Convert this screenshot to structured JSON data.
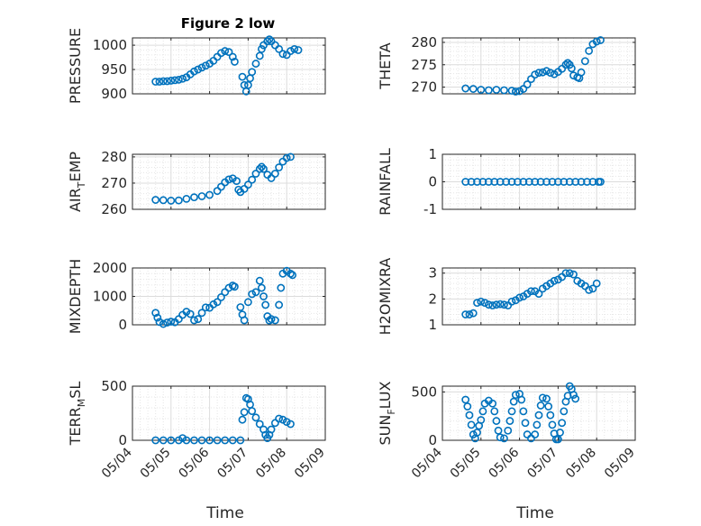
{
  "figure": {
    "title": "Figure 2 low",
    "marker_color": "#0072BD"
  },
  "x_ticks": [
    {
      "value": 0,
      "label": "05/04"
    },
    {
      "value": 1,
      "label": "05/05"
    },
    {
      "value": 2,
      "label": "05/06"
    },
    {
      "value": 3,
      "label": "05/07"
    },
    {
      "value": 4,
      "label": "05/08"
    },
    {
      "value": 5,
      "label": "05/09"
    }
  ],
  "chart_data": [
    {
      "type": "scatter",
      "ylabel": "PRESSURE",
      "ylabel_sub": "",
      "ylabel_rest": "",
      "ylim": [
        900,
        1015
      ],
      "yticks": [
        900,
        950,
        1000
      ],
      "xlabel": "",
      "x_axis": "dates 05/04 to 05/09",
      "grid": true,
      "points": [
        [
          0.6,
          925
        ],
        [
          0.7,
          925
        ],
        [
          0.8,
          926
        ],
        [
          0.9,
          926
        ],
        [
          1.0,
          927
        ],
        [
          1.1,
          928
        ],
        [
          1.2,
          929
        ],
        [
          1.3,
          931
        ],
        [
          1.4,
          934
        ],
        [
          1.5,
          940
        ],
        [
          1.6,
          946
        ],
        [
          1.7,
          950
        ],
        [
          1.8,
          954
        ],
        [
          1.9,
          958
        ],
        [
          2.0,
          962
        ],
        [
          2.1,
          968
        ],
        [
          2.2,
          976
        ],
        [
          2.3,
          984
        ],
        [
          2.4,
          988
        ],
        [
          2.5,
          986
        ],
        [
          2.6,
          976
        ],
        [
          2.65,
          966
        ],
        [
          2.85,
          935
        ],
        [
          2.9,
          918
        ],
        [
          2.95,
          905
        ],
        [
          3.0,
          918
        ],
        [
          3.05,
          932
        ],
        [
          3.1,
          945
        ],
        [
          3.2,
          962
        ],
        [
          3.3,
          978
        ],
        [
          3.35,
          992
        ],
        [
          3.4,
          1000
        ],
        [
          3.5,
          1008
        ],
        [
          3.55,
          1012
        ],
        [
          3.6,
          1008
        ],
        [
          3.7,
          1000
        ],
        [
          3.8,
          992
        ],
        [
          3.9,
          982
        ],
        [
          4.0,
          980
        ],
        [
          4.1,
          988
        ],
        [
          4.2,
          992
        ],
        [
          4.3,
          990
        ]
      ]
    },
    {
      "type": "scatter",
      "ylabel": "THETA",
      "ylabel_sub": "",
      "ylabel_rest": "",
      "ylim": [
        268.5,
        281
      ],
      "yticks": [
        270,
        275,
        280
      ],
      "xlabel": "",
      "x_axis": "dates 05/04 to 05/09",
      "grid": true,
      "points": [
        [
          0.6,
          269.7
        ],
        [
          0.8,
          269.6
        ],
        [
          1.0,
          269.4
        ],
        [
          1.2,
          269.3
        ],
        [
          1.4,
          269.4
        ],
        [
          1.6,
          269.3
        ],
        [
          1.8,
          269.2
        ],
        [
          1.9,
          269.0
        ],
        [
          2.0,
          269.1
        ],
        [
          2.1,
          269.6
        ],
        [
          2.2,
          270.6
        ],
        [
          2.3,
          271.8
        ],
        [
          2.4,
          272.8
        ],
        [
          2.5,
          273.2
        ],
        [
          2.6,
          273.3
        ],
        [
          2.7,
          273.6
        ],
        [
          2.8,
          273.2
        ],
        [
          2.9,
          272.9
        ],
        [
          3.0,
          273.4
        ],
        [
          3.1,
          274.1
        ],
        [
          3.2,
          275.0
        ],
        [
          3.25,
          275.4
        ],
        [
          3.3,
          275.0
        ],
        [
          3.35,
          274.2
        ],
        [
          3.4,
          272.6
        ],
        [
          3.5,
          272.2
        ],
        [
          3.55,
          272.0
        ],
        [
          3.6,
          273.3
        ],
        [
          3.7,
          275.8
        ],
        [
          3.8,
          278.1
        ],
        [
          3.9,
          279.6
        ],
        [
          4.0,
          280.2
        ],
        [
          4.1,
          280.5
        ]
      ]
    },
    {
      "type": "scatter",
      "ylabel": "AIR",
      "ylabel_sub": "T",
      "ylabel_rest": "EMP",
      "ylim": [
        260,
        281
      ],
      "yticks": [
        260,
        270,
        280
      ],
      "xlabel": "",
      "x_axis": "dates 05/04 to 05/09",
      "grid": true,
      "points": [
        [
          0.6,
          263.6
        ],
        [
          0.8,
          263.5
        ],
        [
          1.0,
          263.3
        ],
        [
          1.2,
          263.4
        ],
        [
          1.4,
          264.0
        ],
        [
          1.6,
          264.6
        ],
        [
          1.8,
          265.0
        ],
        [
          2.0,
          265.5
        ],
        [
          2.2,
          267.0
        ],
        [
          2.3,
          268.6
        ],
        [
          2.4,
          270.3
        ],
        [
          2.5,
          271.4
        ],
        [
          2.6,
          271.8
        ],
        [
          2.7,
          270.8
        ],
        [
          2.75,
          267.5
        ],
        [
          2.8,
          266.6
        ],
        [
          2.9,
          267.8
        ],
        [
          3.0,
          269.4
        ],
        [
          3.1,
          271.3
        ],
        [
          3.2,
          273.6
        ],
        [
          3.3,
          275.4
        ],
        [
          3.35,
          276.2
        ],
        [
          3.4,
          275.4
        ],
        [
          3.5,
          273.2
        ],
        [
          3.6,
          271.9
        ],
        [
          3.7,
          273.6
        ],
        [
          3.8,
          276.0
        ],
        [
          3.9,
          278.2
        ],
        [
          4.0,
          279.6
        ],
        [
          4.1,
          280.0
        ]
      ]
    },
    {
      "type": "scatter",
      "ylabel": "RAINFALL",
      "ylabel_sub": "",
      "ylabel_rest": "",
      "ylim": [
        -1,
        1
      ],
      "yticks": [
        -1,
        0,
        1
      ],
      "xlabel": "",
      "x_axis": "dates 05/04 to 05/09",
      "grid": true,
      "points": [
        [
          0.6,
          0
        ],
        [
          0.75,
          0
        ],
        [
          0.9,
          0
        ],
        [
          1.05,
          0
        ],
        [
          1.2,
          0
        ],
        [
          1.35,
          0
        ],
        [
          1.5,
          0
        ],
        [
          1.65,
          0
        ],
        [
          1.8,
          0
        ],
        [
          1.95,
          0
        ],
        [
          2.1,
          0
        ],
        [
          2.25,
          0
        ],
        [
          2.4,
          0
        ],
        [
          2.55,
          0
        ],
        [
          2.7,
          0
        ],
        [
          2.85,
          0
        ],
        [
          3.0,
          0
        ],
        [
          3.15,
          0
        ],
        [
          3.3,
          0
        ],
        [
          3.45,
          0
        ],
        [
          3.6,
          0
        ],
        [
          3.75,
          0
        ],
        [
          3.9,
          0
        ],
        [
          4.05,
          0
        ],
        [
          4.1,
          0
        ]
      ]
    },
    {
      "type": "scatter",
      "ylabel": "MIXDEPTH",
      "ylabel_sub": "",
      "ylabel_rest": "",
      "ylim": [
        0,
        2000
      ],
      "yticks": [
        0,
        1000,
        2000
      ],
      "xlabel": "",
      "x_axis": "dates 05/04 to 05/09",
      "grid": true,
      "points": [
        [
          0.6,
          420
        ],
        [
          0.65,
          250
        ],
        [
          0.7,
          100
        ],
        [
          0.8,
          30
        ],
        [
          0.9,
          80
        ],
        [
          1.0,
          110
        ],
        [
          1.1,
          90
        ],
        [
          1.2,
          200
        ],
        [
          1.3,
          350
        ],
        [
          1.4,
          460
        ],
        [
          1.5,
          380
        ],
        [
          1.6,
          160
        ],
        [
          1.7,
          200
        ],
        [
          1.8,
          420
        ],
        [
          1.9,
          610
        ],
        [
          2.0,
          600
        ],
        [
          2.1,
          720
        ],
        [
          2.2,
          800
        ],
        [
          2.3,
          970
        ],
        [
          2.4,
          1150
        ],
        [
          2.5,
          1300
        ],
        [
          2.6,
          1380
        ],
        [
          2.65,
          1340
        ],
        [
          2.8,
          620
        ],
        [
          2.85,
          360
        ],
        [
          2.9,
          160
        ],
        [
          3.0,
          800
        ],
        [
          3.1,
          1080
        ],
        [
          3.2,
          1150
        ],
        [
          3.3,
          1550
        ],
        [
          3.35,
          1300
        ],
        [
          3.4,
          1000
        ],
        [
          3.45,
          700
        ],
        [
          3.5,
          300
        ],
        [
          3.55,
          150
        ],
        [
          3.6,
          200
        ],
        [
          3.7,
          160
        ],
        [
          3.8,
          700
        ],
        [
          3.85,
          1300
        ],
        [
          3.9,
          1800
        ],
        [
          4.0,
          1900
        ],
        [
          4.1,
          1800
        ],
        [
          4.15,
          1750
        ]
      ]
    },
    {
      "type": "scatter",
      "ylabel": "H2OMIXRA",
      "ylabel_sub": "",
      "ylabel_rest": "",
      "ylim": [
        1,
        3.2
      ],
      "yticks": [
        1,
        2,
        3
      ],
      "xlabel": "",
      "x_axis": "dates 05/04 to 05/09",
      "grid": true,
      "points": [
        [
          0.6,
          1.4
        ],
        [
          0.7,
          1.4
        ],
        [
          0.8,
          1.45
        ],
        [
          0.9,
          1.85
        ],
        [
          1.0,
          1.9
        ],
        [
          1.1,
          1.85
        ],
        [
          1.2,
          1.78
        ],
        [
          1.3,
          1.75
        ],
        [
          1.4,
          1.78
        ],
        [
          1.5,
          1.8
        ],
        [
          1.6,
          1.78
        ],
        [
          1.7,
          1.75
        ],
        [
          1.8,
          1.9
        ],
        [
          1.9,
          1.95
        ],
        [
          2.0,
          2.05
        ],
        [
          2.1,
          2.1
        ],
        [
          2.2,
          2.2
        ],
        [
          2.3,
          2.3
        ],
        [
          2.4,
          2.3
        ],
        [
          2.5,
          2.2
        ],
        [
          2.6,
          2.4
        ],
        [
          2.7,
          2.5
        ],
        [
          2.8,
          2.6
        ],
        [
          2.9,
          2.7
        ],
        [
          3.0,
          2.75
        ],
        [
          3.1,
          2.85
        ],
        [
          3.2,
          3.0
        ],
        [
          3.3,
          3.0
        ],
        [
          3.4,
          2.95
        ],
        [
          3.5,
          2.7
        ],
        [
          3.6,
          2.6
        ],
        [
          3.7,
          2.5
        ],
        [
          3.8,
          2.35
        ],
        [
          3.9,
          2.4
        ],
        [
          4.0,
          2.6
        ]
      ]
    },
    {
      "type": "scatter",
      "ylabel": "TERR",
      "ylabel_sub": "M",
      "ylabel_rest": "SL",
      "ylim": [
        0,
        500
      ],
      "yticks": [
        0,
        500
      ],
      "xlabel": "Time",
      "x_axis": "dates 05/04 to 05/09",
      "grid": true,
      "points": [
        [
          0.6,
          0
        ],
        [
          0.8,
          0
        ],
        [
          1.0,
          0
        ],
        [
          1.2,
          0
        ],
        [
          1.3,
          20
        ],
        [
          1.4,
          0
        ],
        [
          1.6,
          0
        ],
        [
          1.8,
          0
        ],
        [
          2.0,
          0
        ],
        [
          2.2,
          0
        ],
        [
          2.4,
          0
        ],
        [
          2.6,
          0
        ],
        [
          2.8,
          0
        ],
        [
          2.85,
          190
        ],
        [
          2.9,
          260
        ],
        [
          2.95,
          390
        ],
        [
          3.0,
          380
        ],
        [
          3.05,
          330
        ],
        [
          3.1,
          270
        ],
        [
          3.2,
          210
        ],
        [
          3.3,
          150
        ],
        [
          3.4,
          100
        ],
        [
          3.45,
          50
        ],
        [
          3.5,
          20
        ],
        [
          3.55,
          50
        ],
        [
          3.6,
          100
        ],
        [
          3.7,
          160
        ],
        [
          3.8,
          200
        ],
        [
          3.9,
          190
        ],
        [
          4.0,
          170
        ],
        [
          4.1,
          150
        ]
      ]
    },
    {
      "type": "scatter",
      "ylabel": "SUN",
      "ylabel_sub": "F",
      "ylabel_rest": "LUX",
      "ylim": [
        0,
        560
      ],
      "yticks": [
        0,
        500
      ],
      "xlabel": "Time",
      "x_axis": "dates 05/04 to 05/09",
      "grid": true,
      "points": [
        [
          0.6,
          420
        ],
        [
          0.65,
          350
        ],
        [
          0.7,
          260
        ],
        [
          0.75,
          160
        ],
        [
          0.8,
          60
        ],
        [
          0.85,
          20
        ],
        [
          0.9,
          80
        ],
        [
          0.95,
          150
        ],
        [
          1.0,
          210
        ],
        [
          1.05,
          300
        ],
        [
          1.1,
          380
        ],
        [
          1.2,
          410
        ],
        [
          1.3,
          380
        ],
        [
          1.35,
          300
        ],
        [
          1.4,
          200
        ],
        [
          1.45,
          100
        ],
        [
          1.5,
          30
        ],
        [
          1.6,
          20
        ],
        [
          1.7,
          100
        ],
        [
          1.75,
          200
        ],
        [
          1.8,
          300
        ],
        [
          1.85,
          400
        ],
        [
          1.9,
          470
        ],
        [
          2.0,
          480
        ],
        [
          2.05,
          420
        ],
        [
          2.1,
          300
        ],
        [
          2.15,
          180
        ],
        [
          2.2,
          60
        ],
        [
          2.3,
          20
        ],
        [
          2.4,
          60
        ],
        [
          2.45,
          160
        ],
        [
          2.5,
          260
        ],
        [
          2.55,
          360
        ],
        [
          2.6,
          440
        ],
        [
          2.7,
          430
        ],
        [
          2.75,
          350
        ],
        [
          2.8,
          260
        ],
        [
          2.85,
          160
        ],
        [
          2.9,
          70
        ],
        [
          2.95,
          10
        ],
        [
          3.0,
          10
        ],
        [
          3.05,
          80
        ],
        [
          3.1,
          180
        ],
        [
          3.15,
          300
        ],
        [
          3.2,
          400
        ],
        [
          3.25,
          460
        ],
        [
          3.3,
          560
        ],
        [
          3.35,
          530
        ],
        [
          3.4,
          470
        ],
        [
          3.45,
          430
        ]
      ]
    }
  ]
}
